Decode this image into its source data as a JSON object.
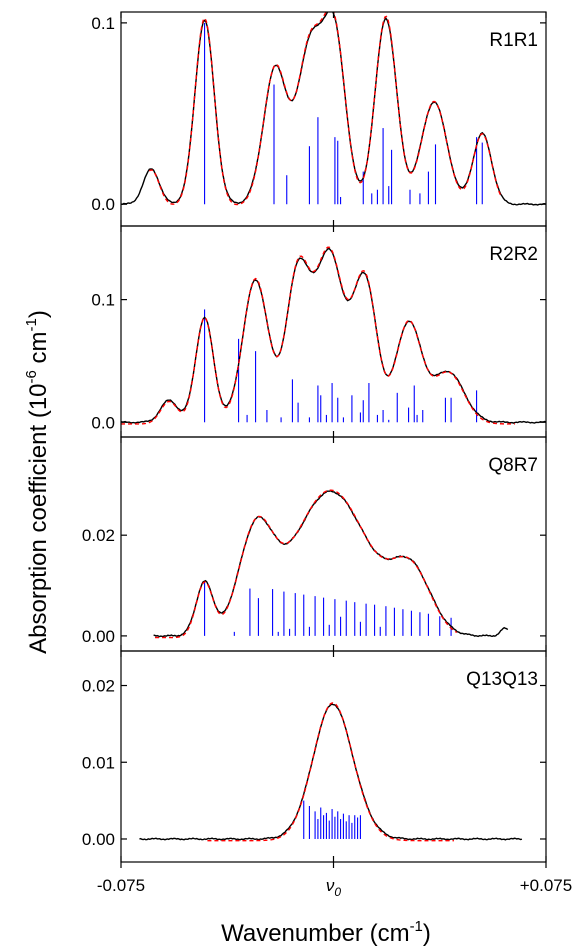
{
  "chart_data": {
    "type": "line",
    "x_axis": {
      "label": "Wavenumber (cm",
      "label_sup": "-1",
      "label_close": ")",
      "range": [
        -0.075,
        0.075
      ],
      "ticks": [
        {
          "value": -0.075,
          "label": "-0.075"
        },
        {
          "value": 0,
          "label": "ν",
          "sub": "0"
        },
        {
          "value": 0.075,
          "label": "+0.075"
        }
      ]
    },
    "y_axis": {
      "label_prefix": "Absorption coefficient (10",
      "label_sup1": "-6",
      "label_mid": " cm",
      "label_sup2": "-1",
      "label_close": ")"
    },
    "colors": {
      "measured": "#000000",
      "fit": "#ff0000",
      "sticks": "#0000ff"
    },
    "panels": [
      {
        "label": "R1R1",
        "ylim": [
          -0.012,
          0.106
        ],
        "ticks": [
          {
            "value": 0.0,
            "label": "0.0"
          },
          {
            "value": 0.1,
            "label": "0.1"
          }
        ],
        "x_start": -0.075,
        "x_end": 0.075,
        "fit_start": -0.065,
        "fit_end": 0.059,
        "peaks": [
          {
            "x": -0.0643,
            "a": 0.0195,
            "w": 0.0028
          },
          {
            "x": -0.0455,
            "a": 0.1015,
            "w": 0.0034
          },
          {
            "x": -0.0205,
            "a": 0.075,
            "w": 0.0042
          },
          {
            "x": -0.0085,
            "a": 0.083,
            "w": 0.0042
          },
          {
            "x": 0.0002,
            "a": 0.0945,
            "w": 0.004
          },
          {
            "x": 0.0185,
            "a": 0.1025,
            "w": 0.0038
          },
          {
            "x": 0.0355,
            "a": 0.0565,
            "w": 0.0045
          },
          {
            "x": 0.0525,
            "a": 0.039,
            "w": 0.0033
          }
        ],
        "sticks": [
          {
            "x": -0.0455,
            "h": 0.1
          },
          {
            "x": -0.021,
            "h": 0.066
          },
          {
            "x": -0.0165,
            "h": 0.016
          },
          {
            "x": -0.0085,
            "h": 0.032
          },
          {
            "x": -0.0055,
            "h": 0.048
          },
          {
            "x": 0.0005,
            "h": 0.037
          },
          {
            "x": 0.0015,
            "h": 0.035
          },
          {
            "x": 0.0025,
            "h": 0.004
          },
          {
            "x": 0.0105,
            "h": 0.018
          },
          {
            "x": 0.0135,
            "h": 0.006
          },
          {
            "x": 0.0155,
            "h": 0.008
          },
          {
            "x": 0.0175,
            "h": 0.042
          },
          {
            "x": 0.0195,
            "h": 0.01
          },
          {
            "x": 0.0205,
            "h": 0.03
          },
          {
            "x": 0.027,
            "h": 0.008
          },
          {
            "x": 0.0305,
            "h": 0.006
          },
          {
            "x": 0.0335,
            "h": 0.018
          },
          {
            "x": 0.036,
            "h": 0.033
          },
          {
            "x": 0.0505,
            "h": 0.037
          },
          {
            "x": 0.0525,
            "h": 0.034
          }
        ]
      },
      {
        "label": "R2R2",
        "ylim": [
          -0.012,
          0.16
        ],
        "ticks": [
          {
            "value": 0.0,
            "label": "0.0"
          },
          {
            "value": 0.1,
            "label": "0.1"
          }
        ],
        "x_start": -0.075,
        "x_end": 0.075,
        "fit_start": -0.075,
        "fit_end": 0.064,
        "peaks": [
          {
            "x": -0.058,
            "a": 0.018,
            "w": 0.003
          },
          {
            "x": -0.0455,
            "a": 0.085,
            "w": 0.0032
          },
          {
            "x": -0.0275,
            "a": 0.116,
            "w": 0.0045
          },
          {
            "x": -0.0125,
            "a": 0.122,
            "w": 0.0042
          },
          {
            "x": -0.0015,
            "a": 0.135,
            "w": 0.0048
          },
          {
            "x": 0.0075,
            "a": 0.022,
            "w": 0.004
          },
          {
            "x": 0.0115,
            "a": 0.103,
            "w": 0.004
          },
          {
            "x": 0.0265,
            "a": 0.081,
            "w": 0.0045
          },
          {
            "x": 0.0405,
            "a": 0.041,
            "w": 0.0055
          }
        ],
        "sticks": [
          {
            "x": -0.0455,
            "h": 0.092
          },
          {
            "x": -0.0335,
            "h": 0.068
          },
          {
            "x": -0.0305,
            "h": 0.006
          },
          {
            "x": -0.0275,
            "h": 0.058
          },
          {
            "x": -0.0235,
            "h": 0.01
          },
          {
            "x": -0.0185,
            "h": 0.004
          },
          {
            "x": -0.0145,
            "h": 0.035
          },
          {
            "x": -0.0125,
            "h": 0.016
          },
          {
            "x": -0.0085,
            "h": 0.004
          },
          {
            "x": -0.0055,
            "h": 0.03
          },
          {
            "x": -0.0045,
            "h": 0.022
          },
          {
            "x": -0.0025,
            "h": 0.006
          },
          {
            "x": -0.0005,
            "h": 0.032
          },
          {
            "x": 0.0015,
            "h": 0.02
          },
          {
            "x": 0.0035,
            "h": 0.004
          },
          {
            "x": 0.0065,
            "h": 0.022
          },
          {
            "x": 0.0095,
            "h": 0.008
          },
          {
            "x": 0.0105,
            "h": 0.018
          },
          {
            "x": 0.0125,
            "h": 0.032
          },
          {
            "x": 0.0155,
            "h": 0.006
          },
          {
            "x": 0.0175,
            "h": 0.01
          },
          {
            "x": 0.0195,
            "h": 0.002
          },
          {
            "x": 0.0225,
            "h": 0.024
          },
          {
            "x": 0.0265,
            "h": 0.012
          },
          {
            "x": 0.0285,
            "h": 0.03
          },
          {
            "x": 0.0295,
            "h": 0.006
          },
          {
            "x": 0.0315,
            "h": 0.01
          },
          {
            "x": 0.0395,
            "h": 0.02
          },
          {
            "x": 0.0415,
            "h": 0.02
          },
          {
            "x": 0.0505,
            "h": 0.026
          }
        ]
      },
      {
        "label": "Q8R7",
        "ylim": [
          -0.003,
          0.0395
        ],
        "ticks": [
          {
            "value": 0.0,
            "label": "0.00"
          },
          {
            "value": 0.02,
            "label": "0.02"
          }
        ],
        "x_start": -0.0635,
        "x_end": 0.0615,
        "fit_start": -0.063,
        "fit_end": 0.0435,
        "peaks": [
          {
            "x": -0.0455,
            "a": 0.0105,
            "w": 0.003
          },
          {
            "x": -0.0275,
            "a": 0.019,
            "w": 0.006
          },
          {
            "x": -0.001,
            "a": 0.0287,
            "w": 0.0135
          },
          {
            "x": 0.0275,
            "a": 0.012,
            "w": 0.007
          },
          {
            "x": 0.0605,
            "a": 0.0015,
            "w": 0.0015
          }
        ],
        "sticks": [
          {
            "x": -0.0455,
            "h": 0.0108
          },
          {
            "x": -0.035,
            "h": 0.0008
          },
          {
            "x": -0.0295,
            "h": 0.0094
          },
          {
            "x": -0.0265,
            "h": 0.0075
          },
          {
            "x": -0.0215,
            "h": 0.0093
          },
          {
            "x": -0.0195,
            "h": 0.0008
          },
          {
            "x": -0.0175,
            "h": 0.0088
          },
          {
            "x": -0.0155,
            "h": 0.0014
          },
          {
            "x": -0.0135,
            "h": 0.0085
          },
          {
            "x": -0.0105,
            "h": 0.0082
          },
          {
            "x": -0.0085,
            "h": 0.0018
          },
          {
            "x": -0.0065,
            "h": 0.0079
          },
          {
            "x": -0.0035,
            "h": 0.0076
          },
          {
            "x": -0.0015,
            "h": 0.0022
          },
          {
            "x": 0.0005,
            "h": 0.0073
          },
          {
            "x": 0.0025,
            "h": 0.0038
          },
          {
            "x": 0.0045,
            "h": 0.007
          },
          {
            "x": 0.0075,
            "h": 0.0067
          },
          {
            "x": 0.0095,
            "h": 0.0028
          },
          {
            "x": 0.0115,
            "h": 0.0064
          },
          {
            "x": 0.0145,
            "h": 0.0062
          },
          {
            "x": 0.0165,
            "h": 0.0018
          },
          {
            "x": 0.0185,
            "h": 0.0059
          },
          {
            "x": 0.0215,
            "h": 0.0056
          },
          {
            "x": 0.0245,
            "h": 0.0053
          },
          {
            "x": 0.0275,
            "h": 0.005
          },
          {
            "x": 0.0305,
            "h": 0.0047
          },
          {
            "x": 0.0335,
            "h": 0.0044
          },
          {
            "x": 0.0375,
            "h": 0.0039
          },
          {
            "x": 0.0415,
            "h": 0.0036
          }
        ]
      },
      {
        "label": "Q13Q13",
        "ylim": [
          -0.003,
          0.0245
        ],
        "ticks": [
          {
            "value": 0.0,
            "label": "0.00"
          },
          {
            "value": 0.01,
            "label": "0.01"
          },
          {
            "value": 0.02,
            "label": "0.02"
          }
        ],
        "x_start": -0.0685,
        "x_end": 0.0665,
        "fit_start": -0.0445,
        "fit_end": 0.0425,
        "peaks": [
          {
            "x": -0.0005,
            "a": 0.0172,
            "w": 0.0068
          },
          {
            "x": 0.0085,
            "a": 0.0012,
            "w": 0.006
          }
        ],
        "sticks": [
          {
            "x": -0.0105,
            "h": 0.005
          },
          {
            "x": -0.0085,
            "h": 0.0043
          },
          {
            "x": -0.0065,
            "h": 0.0036
          },
          {
            "x": -0.0055,
            "h": 0.0026
          },
          {
            "x": -0.0045,
            "h": 0.0041
          },
          {
            "x": -0.0035,
            "h": 0.0031
          },
          {
            "x": -0.0025,
            "h": 0.0034
          },
          {
            "x": -0.0015,
            "h": 0.0024
          },
          {
            "x": -0.0005,
            "h": 0.0039
          },
          {
            "x": 0.0005,
            "h": 0.0029
          },
          {
            "x": 0.0015,
            "h": 0.0036
          },
          {
            "x": 0.0025,
            "h": 0.0026
          },
          {
            "x": 0.0035,
            "h": 0.0033
          },
          {
            "x": 0.0045,
            "h": 0.0023
          },
          {
            "x": 0.0055,
            "h": 0.0031
          },
          {
            "x": 0.0065,
            "h": 0.0021
          },
          {
            "x": 0.0075,
            "h": 0.0031
          },
          {
            "x": 0.0085,
            "h": 0.0028
          },
          {
            "x": 0.0095,
            "h": 0.0031
          }
        ]
      }
    ]
  }
}
